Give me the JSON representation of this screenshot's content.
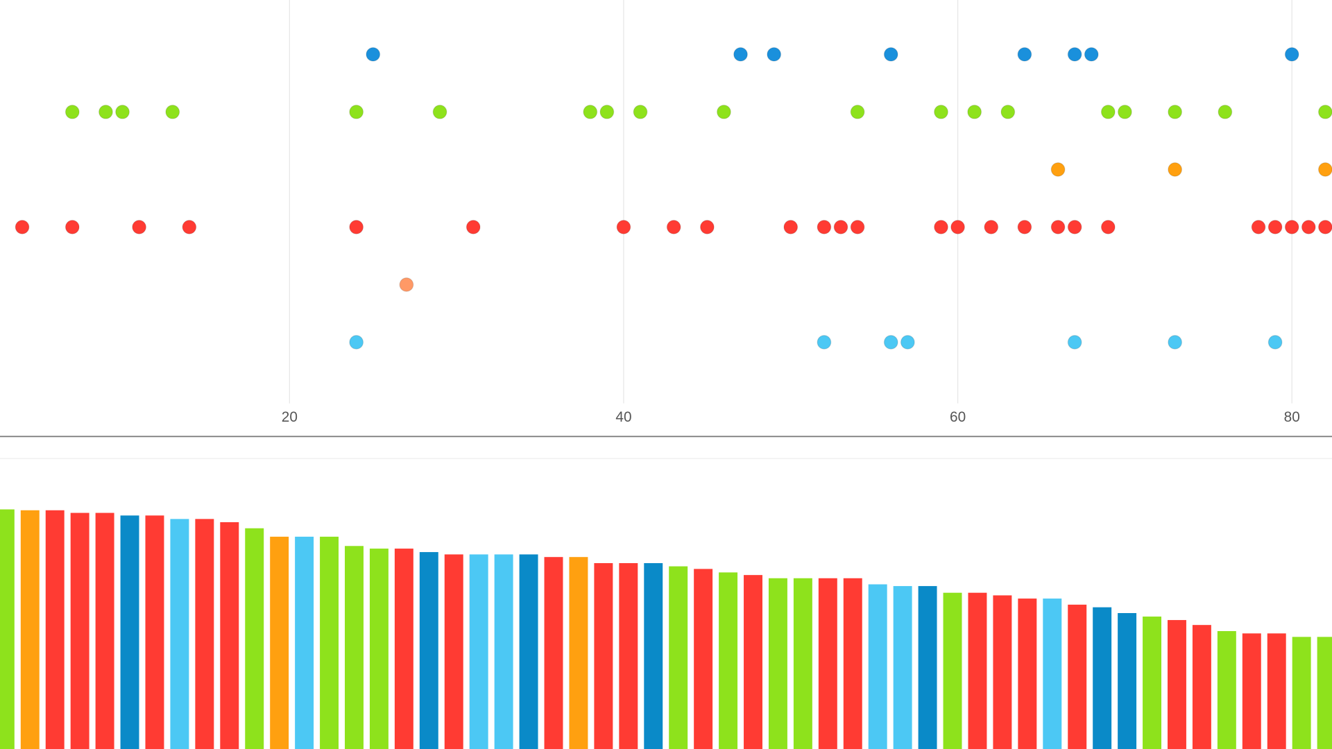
{
  "chart_data": [
    {
      "type": "strip",
      "xlim": [
        2.67,
        82.4
      ],
      "xticks": [
        20,
        40,
        60,
        80
      ],
      "grid": true,
      "series": [
        {
          "color": "#1a90dc",
          "values": [
            25,
            47,
            49,
            56,
            64,
            67,
            68,
            80
          ]
        },
        {
          "color": "#8ee21c",
          "values": [
            7,
            9,
            10,
            13,
            24,
            29,
            38,
            39,
            41,
            46,
            54,
            59,
            61,
            63,
            69,
            70,
            73,
            76,
            82
          ]
        },
        {
          "color": "#ffa010",
          "values": [
            66,
            73,
            82
          ]
        },
        {
          "color": "#ff3b33",
          "values": [
            4,
            7,
            11,
            14,
            24,
            31,
            40,
            43,
            45,
            50,
            52,
            53,
            54,
            59,
            60,
            62,
            64,
            66,
            67,
            69,
            78,
            79,
            80,
            81,
            82
          ]
        },
        {
          "color": "#ff9966",
          "values": [
            27
          ]
        },
        {
          "color": "#4cc8f4",
          "values": [
            24,
            52,
            56,
            57,
            67,
            73,
            79
          ]
        }
      ]
    },
    {
      "type": "bar",
      "ylim": [
        0,
        100
      ],
      "values": [
        82.5,
        82.2,
        82.2,
        81.3,
        81.3,
        80.4,
        80.4,
        79.2,
        79.2,
        78.1,
        76.0,
        73.1,
        73.1,
        73.1,
        69.9,
        69.0,
        69.0,
        67.8,
        67.0,
        67.0,
        67.0,
        67.0,
        66.1,
        66.1,
        64.0,
        64.0,
        64.0,
        62.9,
        62.0,
        60.8,
        59.9,
        58.8,
        58.8,
        58.8,
        58.8,
        56.7,
        56.1,
        56.1,
        53.8,
        53.8,
        52.9,
        51.8,
        51.8,
        49.7,
        48.8,
        46.8,
        45.6,
        44.4,
        42.7,
        40.6,
        39.8,
        39.8,
        38.6,
        38.6
      ],
      "colors": [
        "#8ee21c",
        "#ffa010",
        "#ff3b33",
        "#ff3b33",
        "#ff3b33",
        "#0a8ac8",
        "#ff3b33",
        "#4cc8f4",
        "#ff3b33",
        "#ff3b33",
        "#8ee21c",
        "#ffa010",
        "#4cc8f4",
        "#8ee21c",
        "#8ee21c",
        "#8ee21c",
        "#ff3b33",
        "#0a8ac8",
        "#ff3b33",
        "#4cc8f4",
        "#4cc8f4",
        "#0a8ac8",
        "#ff3b33",
        "#ffa010",
        "#ff3b33",
        "#ff3b33",
        "#0a8ac8",
        "#8ee21c",
        "#ff3b33",
        "#8ee21c",
        "#ff3b33",
        "#8ee21c",
        "#8ee21c",
        "#ff3b33",
        "#ff3b33",
        "#4cc8f4",
        "#4cc8f4",
        "#0a8ac8",
        "#8ee21c",
        "#ff3b33",
        "#ff3b33",
        "#ff3b33",
        "#4cc8f4",
        "#ff3b33",
        "#0a8ac8",
        "#0a8ac8",
        "#8ee21c",
        "#ff3b33",
        "#ff3b33",
        "#8ee21c",
        "#ff3b33",
        "#ff3b33",
        "#8ee21c",
        "#8ee21c"
      ]
    }
  ]
}
